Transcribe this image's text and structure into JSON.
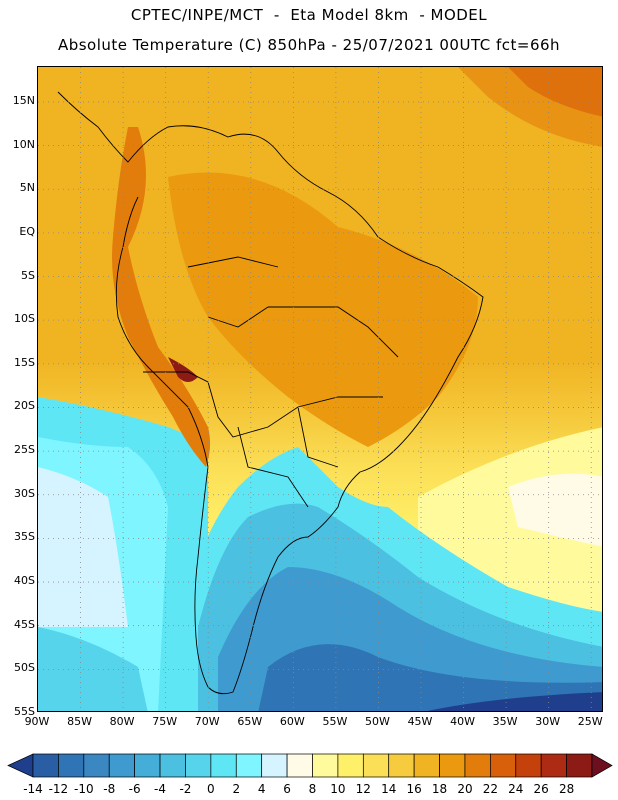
{
  "header": {
    "line1": "CPTEC/INPE/MCT  -  Eta Model 8km  - MODEL",
    "line2": "Absolute Temperature (C) 850hPa - 25/07/2021 00UTC fct=66h"
  },
  "map": {
    "lat_labels": [
      "15N",
      "10N",
      "5N",
      "EQ",
      "5S",
      "10S",
      "15S",
      "20S",
      "25S",
      "30S",
      "35S",
      "40S",
      "45S",
      "50S",
      "55S"
    ],
    "lon_labels": [
      "90W",
      "85W",
      "80W",
      "75W",
      "70W",
      "65W",
      "60W",
      "55W",
      "50W",
      "45W",
      "40W",
      "35W",
      "30W",
      "25W"
    ],
    "lat_values": [
      15,
      10,
      5,
      0,
      -5,
      -10,
      -15,
      -20,
      -25,
      -30,
      -35,
      -40,
      -45,
      -50,
      -55
    ],
    "lon_values": [
      -90,
      -85,
      -80,
      -75,
      -70,
      -65,
      -60,
      -55,
      -50,
      -45,
      -40,
      -35,
      -30,
      -25
    ],
    "extent": {
      "lon_min": -90,
      "lon_max": -23.5,
      "lat_min": -55,
      "lat_max": 19
    }
  },
  "colorbar": {
    "labels": [
      "-14",
      "-12",
      "-10",
      "-8",
      "-6",
      "-4",
      "-2",
      "0",
      "2",
      "4",
      "6",
      "8",
      "10",
      "12",
      "14",
      "16",
      "18",
      "20",
      "22",
      "24",
      "26",
      "28"
    ],
    "colors": [
      "#1f3f8c",
      "#2a5ea4",
      "#2f74b4",
      "#3a87c2",
      "#3f9bcf",
      "#44aed8",
      "#4cc0e0",
      "#56d4ec",
      "#5fe6f5",
      "#7ff5ff",
      "#d5f4ff",
      "#fffbe6",
      "#fffa9c",
      "#fff06a",
      "#fbdf56",
      "#f6cb3e",
      "#f0b321",
      "#eb9a10",
      "#e27d0c",
      "#d8600b",
      "#c5410b",
      "#ad2b12",
      "#8c1b16",
      "#6e0f1f"
    ]
  }
}
